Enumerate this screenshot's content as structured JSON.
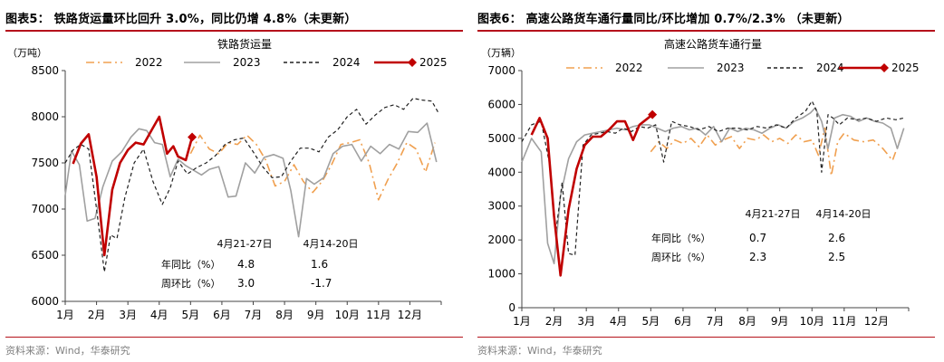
{
  "chart_data": [
    {
      "type": "line",
      "figure_title": "图表5： 铁路货运量环比回升 3.0%，同比仍增 4.8%（未更新）",
      "title": "铁路货运量",
      "unit": "（万吨）",
      "source": "资料来源：Wind，华泰研究",
      "ylim": [
        6000,
        8500
      ],
      "yticks": [
        6000,
        6500,
        7000,
        7500,
        8000,
        8500
      ],
      "xlim": [
        1,
        13
      ],
      "x_tick_labels": [
        "1月",
        "2月",
        "3月",
        "4月",
        "5月",
        "6月",
        "7月",
        "8月",
        "9月",
        "10月",
        "11月",
        "12月"
      ],
      "grid": false,
      "legend": "top",
      "series": [
        {
          "name": "2022",
          "color": "#f0a050",
          "style": "dashdot",
          "x": [
            5.0,
            5.3,
            5.6,
            5.9,
            6.2,
            6.5,
            6.8,
            7.1,
            7.4,
            7.7,
            8.0,
            8.3,
            8.6,
            8.9,
            9.2,
            9.5,
            9.8,
            10.1,
            10.4,
            10.7,
            11.0,
            11.3,
            11.6,
            11.9,
            12.2,
            12.5,
            12.8
          ],
          "y": [
            7600,
            7800,
            7650,
            7600,
            7720,
            7700,
            7800,
            7700,
            7530,
            7250,
            7300,
            7480,
            7300,
            7180,
            7300,
            7480,
            7700,
            7720,
            7750,
            7500,
            7100,
            7320,
            7500,
            7720,
            7650,
            7400,
            7720
          ]
        },
        {
          "name": "2023",
          "color": "#a0a0a0",
          "style": "solid",
          "x": [
            1.0,
            1.2,
            1.45,
            1.7,
            1.95,
            2.2,
            2.5,
            2.8,
            3.1,
            3.35,
            3.6,
            3.85,
            4.1,
            4.35,
            4.6,
            4.85,
            5.1,
            5.35,
            5.6,
            5.9,
            6.2,
            6.45,
            6.75,
            7.05,
            7.35,
            7.65,
            7.95,
            8.2,
            8.45,
            8.7,
            8.95,
            9.25,
            9.55,
            9.85,
            10.15,
            10.45,
            10.75,
            11.05,
            11.35,
            11.65,
            11.95,
            12.25,
            12.55,
            12.85
          ],
          "y": [
            7150,
            7630,
            7480,
            6870,
            6900,
            7240,
            7520,
            7620,
            7780,
            7870,
            7850,
            7720,
            7700,
            7350,
            7540,
            7470,
            7420,
            7370,
            7430,
            7460,
            7130,
            7140,
            7500,
            7390,
            7560,
            7590,
            7550,
            7200,
            6700,
            7330,
            7270,
            7340,
            7600,
            7680,
            7700,
            7520,
            7680,
            7600,
            7700,
            7650,
            7840,
            7830,
            7930,
            7510
          ]
        },
        {
          "name": "2024",
          "color": "#202020",
          "style": "dashed",
          "x": [
            1.0,
            1.25,
            1.5,
            1.75,
            2.0,
            2.25,
            2.45,
            2.65,
            2.9,
            3.2,
            3.5,
            3.8,
            4.1,
            4.35,
            4.6,
            4.9,
            5.2,
            5.5,
            5.8,
            6.1,
            6.4,
            6.7,
            7.0,
            7.3,
            7.6,
            7.9,
            8.2,
            8.5,
            8.8,
            9.1,
            9.4,
            9.7,
            10.0,
            10.3,
            10.6,
            10.9,
            11.2,
            11.5,
            11.8,
            12.1,
            12.4,
            12.7,
            12.9
          ],
          "y": [
            7500,
            7640,
            7700,
            7650,
            7000,
            6320,
            6720,
            6680,
            7120,
            7500,
            7650,
            7300,
            7050,
            7230,
            7520,
            7380,
            7450,
            7500,
            7580,
            7700,
            7750,
            7770,
            7620,
            7460,
            7340,
            7350,
            7520,
            7660,
            7660,
            7620,
            7780,
            7860,
            8000,
            8080,
            7920,
            8020,
            8100,
            8130,
            8080,
            8200,
            8180,
            8170,
            8050
          ]
        },
        {
          "name": "2025",
          "color": "#c00000",
          "style": "solid",
          "end_marker": "diamond",
          "x": [
            1.25,
            1.5,
            1.75,
            2.0,
            2.25,
            2.5,
            2.75,
            3.0,
            3.25,
            3.5,
            3.75,
            4.0,
            4.25,
            4.45,
            4.6,
            4.85,
            5.05
          ],
          "y": [
            7490,
            7710,
            7810,
            7350,
            6500,
            7210,
            7500,
            7640,
            7720,
            7700,
            7850,
            8000,
            7600,
            7680,
            7570,
            7530,
            7780
          ]
        }
      ],
      "annotation": {
        "headers": [
          "4月21-27日",
          "4月14-20日"
        ],
        "rows": [
          {
            "label": "年同比（%）",
            "v1": "4.8",
            "v2": "1.6"
          },
          {
            "label": "周环比（%）",
            "v1": "3.0",
            "v2": "-1.7"
          }
        ]
      }
    },
    {
      "type": "line",
      "figure_title": "图表6： 高速公路货车通行量同比/环比增加 0.7%/2.3% （未更新）",
      "title": "高速公路货车通行量",
      "unit": "（万辆）",
      "source": "资料来源：Wind，华泰研究",
      "ylim": [
        0,
        7000
      ],
      "yticks": [
        0,
        1000,
        2000,
        3000,
        4000,
        5000,
        6000,
        7000
      ],
      "xlim": [
        1,
        13
      ],
      "x_tick_labels": [
        "1月",
        "2月",
        "3月",
        "4月",
        "5月",
        "6月",
        "7月",
        "8月",
        "9月",
        "10月",
        "11月",
        "12月"
      ],
      "grid": false,
      "legend": "top",
      "series": [
        {
          "name": "2022",
          "color": "#f0a050",
          "style": "dashdot",
          "x": [
            5.0,
            5.25,
            5.5,
            5.75,
            6.0,
            6.25,
            6.5,
            6.75,
            7.0,
            7.25,
            7.5,
            7.75,
            8.0,
            8.25,
            8.5,
            8.75,
            9.0,
            9.25,
            9.5,
            9.75,
            10.0,
            10.2,
            10.4,
            10.6,
            10.8,
            11.0,
            11.3,
            11.6,
            11.9,
            12.2,
            12.5,
            12.75
          ],
          "y": [
            4600,
            4900,
            4700,
            4950,
            4850,
            5000,
            4750,
            5100,
            4800,
            4950,
            5050,
            4700,
            5000,
            4950,
            5100,
            4900,
            5000,
            4850,
            5100,
            4900,
            4950,
            4500,
            5300,
            3900,
            4900,
            5150,
            4950,
            4900,
            4950,
            4700,
            4350,
            5000
          ]
        },
        {
          "name": "2023",
          "color": "#a0a0a0",
          "style": "solid",
          "x": [
            1.0,
            1.3,
            1.6,
            1.8,
            2.0,
            2.2,
            2.45,
            2.7,
            2.95,
            3.2,
            3.45,
            3.7,
            3.95,
            4.2,
            4.45,
            4.7,
            4.95,
            5.2,
            5.45,
            5.7,
            5.95,
            6.2,
            6.45,
            6.7,
            6.95,
            7.2,
            7.45,
            7.7,
            7.95,
            8.2,
            8.45,
            8.7,
            8.95,
            9.2,
            9.45,
            9.7,
            9.95,
            10.1,
            10.3,
            10.5,
            10.7,
            10.95,
            11.2,
            11.45,
            11.7,
            11.95,
            12.2,
            12.45,
            12.65,
            12.85
          ],
          "y": [
            4300,
            5000,
            4600,
            1900,
            1300,
            3300,
            4400,
            4900,
            5100,
            5150,
            5200,
            5250,
            5300,
            5250,
            5350,
            5400,
            5400,
            5300,
            5200,
            5300,
            5350,
            5250,
            5300,
            5100,
            5350,
            4900,
            5300,
            5200,
            5300,
            5250,
            5150,
            5300,
            5400,
            5300,
            5500,
            5600,
            5750,
            5900,
            5500,
            4700,
            5600,
            5700,
            5650,
            5500,
            5600,
            5500,
            5450,
            5300,
            4700,
            5300
          ]
        },
        {
          "name": "2024",
          "color": "#202020",
          "style": "dashed",
          "x": [
            1.0,
            1.3,
            1.6,
            1.85,
            2.05,
            2.25,
            2.45,
            2.65,
            2.9,
            3.15,
            3.4,
            3.65,
            3.9,
            4.15,
            4.4,
            4.65,
            4.9,
            5.15,
            5.4,
            5.65,
            5.9,
            6.2,
            6.5,
            6.8,
            7.1,
            7.4,
            7.7,
            8.0,
            8.3,
            8.6,
            8.9,
            9.2,
            9.5,
            9.8,
            10.0,
            10.15,
            10.3,
            10.5,
            10.65,
            10.85,
            11.1,
            11.4,
            11.7,
            12.0,
            12.3,
            12.6,
            12.85
          ],
          "y": [
            4900,
            5400,
            5500,
            4300,
            2200,
            3700,
            1600,
            1550,
            4800,
            5100,
            5150,
            5200,
            5150,
            5300,
            5200,
            5350,
            5300,
            5400,
            4300,
            5500,
            5400,
            5350,
            5250,
            5350,
            5200,
            5300,
            5300,
            5250,
            5350,
            5300,
            5400,
            5300,
            5600,
            5800,
            6100,
            5800,
            4000,
            5700,
            5600,
            5400,
            5600,
            5550,
            5600,
            5500,
            5600,
            5550,
            5600
          ]
        },
        {
          "name": "2025",
          "color": "#c00000",
          "style": "solid",
          "end_marker": "diamond",
          "x": [
            1.3,
            1.55,
            1.8,
            2.0,
            2.2,
            2.45,
            2.7,
            2.95,
            3.2,
            3.45,
            3.7,
            3.95,
            4.2,
            4.45,
            4.65,
            4.85,
            5.05
          ],
          "y": [
            5100,
            5600,
            5000,
            2700,
            950,
            2900,
            4100,
            4800,
            5050,
            5050,
            5250,
            5500,
            5500,
            4950,
            5400,
            5550,
            5700
          ]
        }
      ],
      "annotation": {
        "headers": [
          "4月21-27日",
          "4月14-20日"
        ],
        "rows": [
          {
            "label": "年同比（%）",
            "v1": "0.7",
            "v2": "2.6"
          },
          {
            "label": "周环比（%）",
            "v1": "2.3",
            "v2": "2.5"
          }
        ]
      }
    }
  ]
}
